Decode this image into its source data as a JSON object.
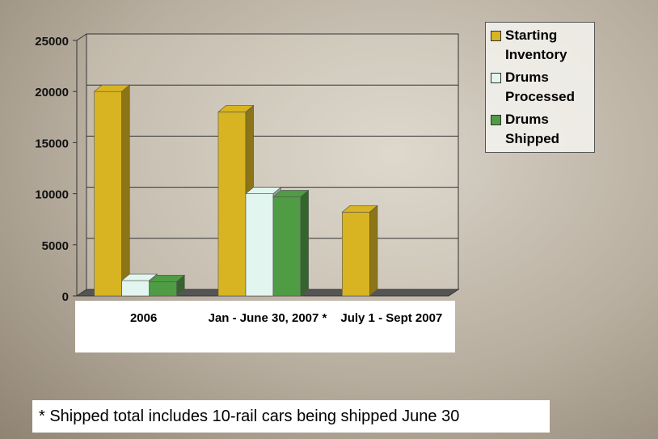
{
  "chart_data": {
    "type": "bar3d",
    "categories": [
      "2006",
      "Jan - June 30, 2007 *",
      "July 1 - Sept 2007"
    ],
    "series": [
      {
        "name": "Starting Inventory",
        "color": "#d8b422",
        "values": [
          20000,
          18000,
          8200
        ]
      },
      {
        "name": "Drums Processed",
        "color": "#e2f5ef",
        "values": [
          1500,
          10000,
          null
        ]
      },
      {
        "name": "Drums Shipped",
        "color": "#4f9c44",
        "values": [
          1400,
          9700,
          null
        ]
      }
    ],
    "ylim": [
      0,
      25000
    ],
    "yticks": [
      0,
      5000,
      10000,
      15000,
      20000,
      25000
    ],
    "grid": true,
    "legend": "top-right",
    "annotation": "* Shipped total includes 10-rail cars being shipped June 30"
  }
}
